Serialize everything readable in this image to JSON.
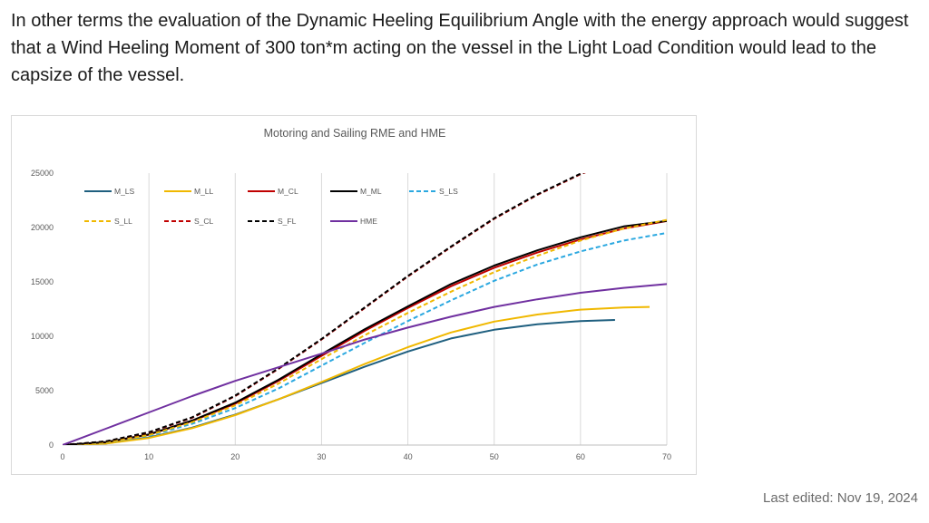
{
  "page": {
    "paragraph": "In other terms the evaluation of the Dynamic Heeling Equilibrium Angle with the energy approach would suggest that a Wind Heeling Moment of 300 ton*m acting on the vessel in the Light Load Condition would lead to the capsize of the vessel.",
    "last_edited": "Last edited: Nov 19, 2024"
  },
  "chart_data": {
    "type": "line",
    "title": "Motoring and Sailing RME and HME",
    "xlabel": "",
    "ylabel": "",
    "xlim": [
      0,
      70
    ],
    "ylim": [
      0,
      25000
    ],
    "x_ticks": [
      0,
      10,
      20,
      30,
      40,
      50,
      60,
      70
    ],
    "y_ticks": [
      0,
      5000,
      10000,
      15000,
      20000,
      25000
    ],
    "grid": "vertical",
    "legend_position": "top-left-inside",
    "series": [
      {
        "name": "M_LS",
        "color": "#1f5f7f",
        "dash": "solid",
        "x": [
          0,
          5,
          10,
          15,
          20,
          25,
          30,
          35,
          40,
          45,
          50,
          55,
          60,
          64
        ],
        "y": [
          0,
          150,
          700,
          1600,
          2800,
          4200,
          5700,
          7200,
          8600,
          9800,
          10600,
          11100,
          11400,
          11500
        ]
      },
      {
        "name": "M_LL",
        "color": "#f0b800",
        "dash": "solid",
        "x": [
          0,
          5,
          10,
          15,
          20,
          25,
          30,
          35,
          40,
          45,
          50,
          55,
          60,
          65,
          68
        ],
        "y": [
          0,
          130,
          650,
          1550,
          2750,
          4200,
          5800,
          7450,
          9000,
          10350,
          11350,
          12000,
          12450,
          12650,
          12700
        ]
      },
      {
        "name": "M_CL",
        "color": "#c00000",
        "dash": "solid",
        "x": [
          0,
          5,
          10,
          15,
          20,
          25,
          30,
          35,
          40,
          45,
          50,
          55,
          60,
          65,
          70
        ],
        "y": [
          0,
          260,
          950,
          2200,
          3800,
          5900,
          8200,
          10500,
          12600,
          14600,
          16300,
          17700,
          18900,
          19900,
          20600
        ]
      },
      {
        "name": "M_ML",
        "color": "#000000",
        "dash": "solid",
        "x": [
          0,
          5,
          10,
          15,
          20,
          25,
          30,
          35,
          40,
          45,
          50,
          55,
          60,
          65,
          70
        ],
        "y": [
          0,
          270,
          980,
          2250,
          3900,
          6000,
          8350,
          10650,
          12750,
          14800,
          16500,
          17900,
          19100,
          20100,
          20600
        ]
      },
      {
        "name": "S_LS",
        "color": "#2ba8e0",
        "dash": "dashed",
        "x": [
          0,
          5,
          10,
          15,
          20,
          25,
          30,
          35,
          40,
          45,
          50,
          55,
          60,
          65,
          70
        ],
        "y": [
          0,
          230,
          850,
          1950,
          3400,
          5200,
          7300,
          9400,
          11400,
          13300,
          15100,
          16600,
          17800,
          18800,
          19500
        ]
      },
      {
        "name": "S_LL",
        "color": "#f0b800",
        "dash": "dashed",
        "x": [
          0,
          5,
          10,
          15,
          20,
          25,
          30,
          35,
          40,
          45,
          50,
          55,
          60,
          65,
          70
        ],
        "y": [
          0,
          250,
          920,
          2100,
          3650,
          5650,
          7900,
          10100,
          12150,
          14100,
          15900,
          17400,
          18800,
          19900,
          20700
        ]
      },
      {
        "name": "S_CL",
        "color": "#c00000",
        "dash": "dashed",
        "x": [
          0,
          5,
          10,
          15,
          20,
          25,
          30,
          35,
          40,
          45,
          50,
          55,
          60,
          62
        ],
        "y": [
          0,
          330,
          1150,
          2500,
          4500,
          7000,
          9700,
          12600,
          15500,
          18200,
          20800,
          23000,
          24900,
          25500
        ]
      },
      {
        "name": "S_FL",
        "color": "#000000",
        "dash": "dashed",
        "x": [
          0,
          5,
          10,
          15,
          20,
          25,
          30,
          35,
          40,
          45,
          50,
          55,
          60,
          62
        ],
        "y": [
          0,
          340,
          1180,
          2550,
          4550,
          7050,
          9750,
          12650,
          15550,
          18250,
          20850,
          23050,
          24950,
          25500
        ]
      },
      {
        "name": "HME",
        "color": "#7030a0",
        "dash": "solid",
        "x": [
          0,
          5,
          10,
          15,
          20,
          25,
          30,
          35,
          40,
          45,
          50,
          55,
          60,
          65,
          70
        ],
        "y": [
          0,
          1500,
          3000,
          4500,
          5900,
          7150,
          8400,
          9700,
          10800,
          11800,
          12700,
          13400,
          14000,
          14450,
          14800
        ]
      }
    ]
  }
}
